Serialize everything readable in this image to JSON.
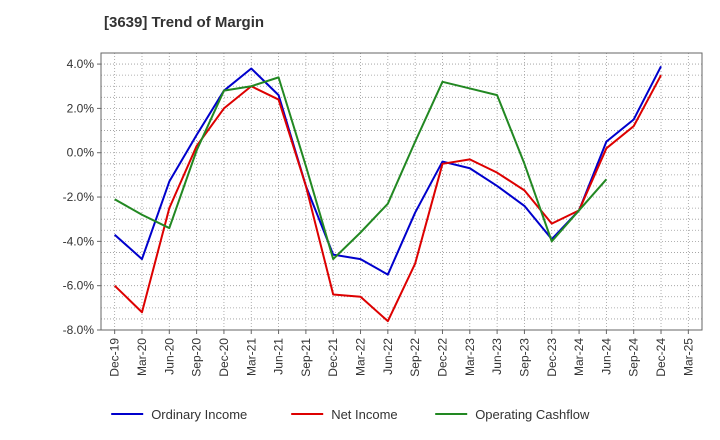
{
  "chart_data": {
    "type": "line",
    "title": "[3639]  Trend of Margin",
    "xlabel": "",
    "ylabel": "",
    "categories": [
      "Dec-19",
      "Mar-20",
      "Jun-20",
      "Sep-20",
      "Dec-20",
      "Mar-21",
      "Jun-21",
      "Sep-21",
      "Dec-21",
      "Mar-22",
      "Jun-22",
      "Sep-22",
      "Dec-22",
      "Mar-23",
      "Jun-23",
      "Sep-23",
      "Dec-23",
      "Mar-24",
      "Jun-24",
      "Sep-24",
      "Dec-24",
      "Mar-25"
    ],
    "y_ticks": [
      "4.0%",
      "2.0%",
      "0.0%",
      "-2.0%",
      "-4.0%",
      "-6.0%",
      "-8.0%"
    ],
    "ylim": [
      -8,
      4.5
    ],
    "grid": true,
    "legend_position": "bottom",
    "series": [
      {
        "name": "Ordinary Income",
        "color": "#0000cc",
        "values": [
          -3.7,
          -4.8,
          -1.3,
          0.8,
          2.8,
          3.8,
          2.6,
          -1.5,
          -4.6,
          -4.8,
          -5.5,
          -2.7,
          -0.4,
          -0.7,
          -1.5,
          -2.4,
          -3.9,
          -2.6,
          0.5,
          1.5,
          3.9,
          null
        ]
      },
      {
        "name": "Net Income",
        "color": "#dd0000",
        "values": [
          -6.0,
          -7.2,
          -2.5,
          0.3,
          2.0,
          3.0,
          2.4,
          -1.5,
          -6.4,
          -6.5,
          -7.6,
          -5.0,
          -0.5,
          -0.3,
          -0.9,
          -1.7,
          -3.2,
          -2.6,
          0.2,
          1.2,
          3.5,
          null
        ]
      },
      {
        "name": "Operating Cashflow",
        "color": "#228822",
        "values": [
          -2.1,
          -2.8,
          -3.4,
          0.1,
          2.8,
          3.0,
          3.4,
          -0.6,
          -4.8,
          -3.6,
          -2.3,
          0.5,
          3.2,
          2.9,
          2.6,
          -0.5,
          -4.0,
          -2.6,
          -1.2,
          null,
          null,
          null
        ]
      }
    ]
  }
}
